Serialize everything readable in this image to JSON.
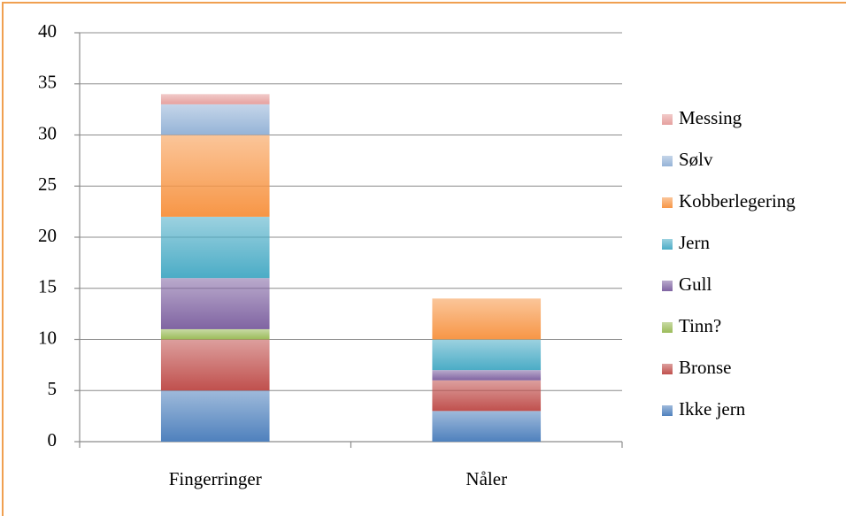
{
  "chart_data": {
    "type": "stacked_bar",
    "categories": [
      "Fingerringer",
      "Nåler"
    ],
    "series": [
      {
        "name": "Ikke jern",
        "color": "#4f81bd",
        "values": [
          5,
          3
        ]
      },
      {
        "name": "Bronse",
        "color": "#c0504d",
        "values": [
          5,
          3
        ]
      },
      {
        "name": "Tinn?",
        "color": "#9bbb59",
        "values": [
          1,
          0
        ]
      },
      {
        "name": "Gull",
        "color": "#8064a2",
        "values": [
          5,
          1
        ]
      },
      {
        "name": "Jern",
        "color": "#4bacc6",
        "values": [
          6,
          3
        ]
      },
      {
        "name": "Kobberlegering",
        "color": "#f79646",
        "values": [
          8,
          4
        ]
      },
      {
        "name": "Sølv",
        "color": "#95b3d7",
        "values": [
          3,
          0
        ]
      },
      {
        "name": "Messing",
        "color": "#e6a09e",
        "values": [
          1,
          0
        ]
      }
    ],
    "ylim": [
      0,
      40
    ],
    "yticks": [
      0,
      5,
      10,
      15,
      20,
      25,
      30,
      35,
      40
    ],
    "grid": true,
    "legend": "right"
  }
}
